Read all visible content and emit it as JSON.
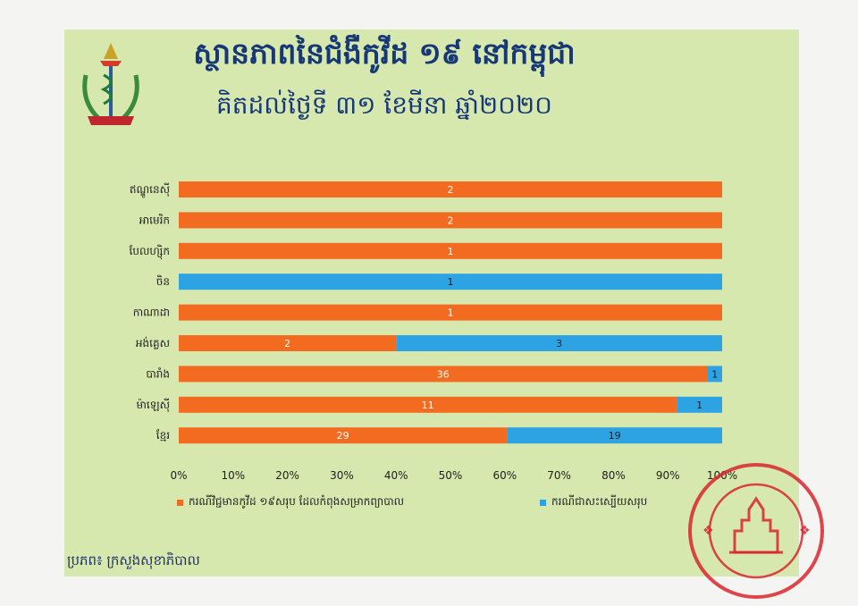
{
  "header": {
    "title": "ស្ថានភាពនៃជំងឺកូវីដ ១៩ នៅកម្ពុជា",
    "subtitle": "គិតដល់ថ្ងៃទី ៣១ ខែមីនា ឆ្នាំ២០២០"
  },
  "legend": {
    "active": "ករណីវិជ្ជមានកូវីដ ១៩សរុប ដែលកំពុងសម្រាកព្យាបាល",
    "recovered": "ករណីជាសះស្បើយសរុប"
  },
  "footer": {
    "source": "ប្រភព៖ ក្រសួងសុខាភិបាល"
  },
  "colors": {
    "active": "#f36b21",
    "recovered": "#2ea3e3",
    "background": "#d6e8ad",
    "title": "#173876"
  },
  "chart_data": {
    "type": "bar",
    "orientation": "horizontal",
    "stacked": "percent",
    "categories": [
      "ឥណ្ឌូនេស៊ី",
      "អាមេរិក",
      "បែលហ្ស៊ិក",
      "ចិន",
      "កាណាដា",
      "អង់គ្លេស",
      "បារាំង",
      "ម៉ាឡេស៊ី",
      "ខ្មែរ"
    ],
    "series": [
      {
        "name": "ករណីវិជ្ជមានកូវីដ ១៩សរុប ដែលកំពុងសម្រាកព្យាបាល",
        "values": [
          2,
          2,
          1,
          0,
          1,
          2,
          36,
          11,
          29
        ]
      },
      {
        "name": "ករណីជាសះស្បើយសរុប",
        "values": [
          0,
          0,
          0,
          1,
          0,
          3,
          1,
          1,
          19
        ]
      }
    ],
    "x_ticks": [
      "0%",
      "10%",
      "20%",
      "30%",
      "40%",
      "50%",
      "60%",
      "70%",
      "80%",
      "90%",
      "100%"
    ],
    "xlim": [
      0,
      100
    ],
    "grid": false,
    "legend_position": "bottom"
  }
}
